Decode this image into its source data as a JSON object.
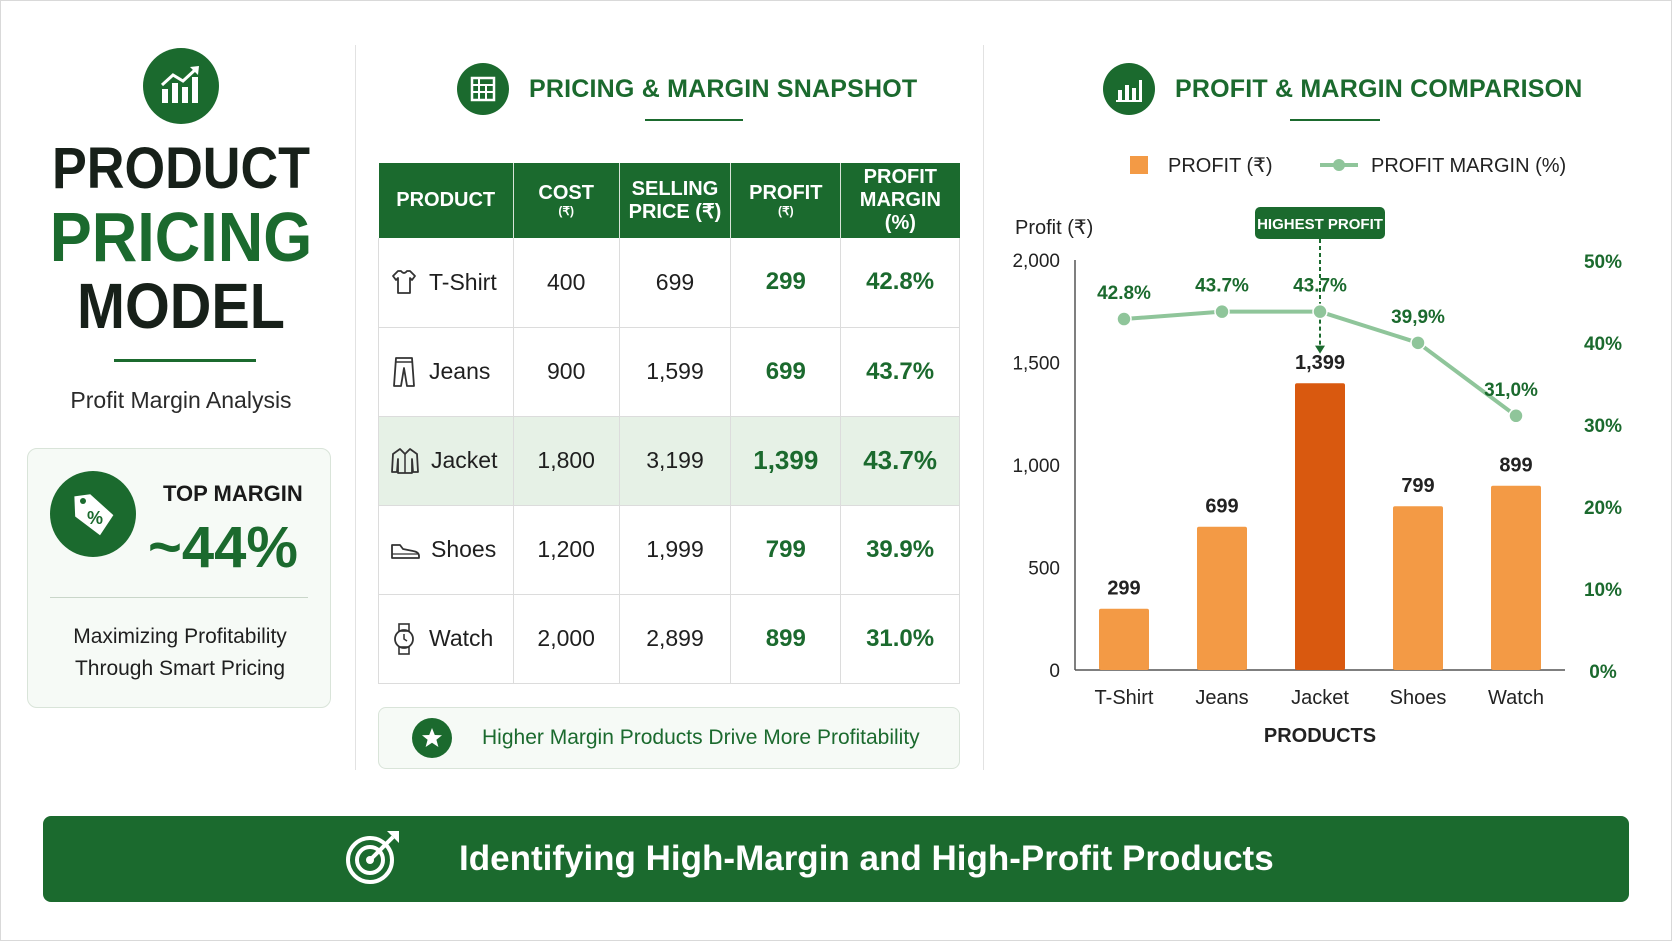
{
  "header": {
    "title_line1": "PRODUCT",
    "title_line2": "PRICING",
    "title_line3": "MODEL",
    "subtitle": "Profit Margin Analysis",
    "logo_icon": "growth-chart-icon"
  },
  "top_card": {
    "label": "TOP MARGIN",
    "value": "~44%",
    "line1": "Maximizing Profitability",
    "line2": "Through Smart Pricing",
    "icon": "percent-tag-icon"
  },
  "snapshot": {
    "title": "PRICING & MARGIN SNAPSHOT",
    "columns": [
      {
        "line1": "PRODUCT",
        "line2": ""
      },
      {
        "line1": "COST",
        "line2": "(₹)"
      },
      {
        "line1": "SELLING",
        "line2": "PRICE (₹)"
      },
      {
        "line1": "PROFIT",
        "line2": "(₹)"
      },
      {
        "line1": "PROFIT",
        "line2": "MARGIN (%)"
      }
    ],
    "rows": [
      {
        "product": "T-Shirt",
        "cost": "400",
        "price": "699",
        "profit": "299",
        "margin": "42.8%",
        "icon": "tshirt-icon"
      },
      {
        "product": "Jeans",
        "cost": "900",
        "price": "1,599",
        "profit": "699",
        "margin": "43.7%",
        "icon": "jeans-icon"
      },
      {
        "product": "Jacket",
        "cost": "1,800",
        "price": "3,199",
        "profit": "1,399",
        "margin": "43.7%",
        "icon": "jacket-icon"
      },
      {
        "product": "Shoes",
        "cost": "1,200",
        "price": "1,999",
        "profit": "799",
        "margin": "39.9%",
        "icon": "shoe-icon"
      },
      {
        "product": "Watch",
        "cost": "2,000",
        "price": "2,899",
        "profit": "899",
        "margin": "31.0%",
        "icon": "watch-icon"
      }
    ],
    "note": "Higher Margin Products Drive More Profitability"
  },
  "comparison": {
    "title": "PROFIT & MARGIN COMPARISON"
  },
  "banner": {
    "text": "Identifying High-Margin and High-Profit Products",
    "icon": "target-icon"
  },
  "colors": {
    "brand_green": "#1b6a2e",
    "bar_orange": "#f39a45",
    "bar_highlight": "#d9590f",
    "margin_line": "#8fc59a"
  },
  "chart_data": {
    "type": "bar",
    "categories": [
      "T-Shirt",
      "Jeans",
      "Jacket",
      "Shoes",
      "Watch"
    ],
    "series": [
      {
        "name": "PROFIT (₹)",
        "type": "bar",
        "axis": "left",
        "values": [
          299,
          699,
          1399,
          799,
          899
        ],
        "labels": [
          "299",
          "699",
          "1,399",
          "799",
          "899"
        ]
      },
      {
        "name": "PROFIT MARGIN (%)",
        "type": "line",
        "axis": "right",
        "values": [
          42.8,
          43.7,
          43.7,
          39.9,
          31.0
        ],
        "labels": [
          "42.8%",
          "43.7%",
          "43.7%",
          "39,9%",
          "31,0%"
        ]
      }
    ],
    "xlabel": "PRODUCTS",
    "ylabel": "Profit (₹)",
    "ylim": [
      0,
      2000
    ],
    "yticks": [
      "0",
      "500",
      "1,000",
      "1,500",
      "2,000"
    ],
    "ytick_values": [
      0,
      500,
      1000,
      1500,
      2000
    ],
    "y2lim": [
      0,
      50
    ],
    "y2ticks": [
      "0%",
      "10%",
      "20%",
      "30%",
      "40%",
      "50%"
    ],
    "y2tick_values": [
      0,
      10,
      20,
      30,
      40,
      50
    ],
    "annotation": {
      "text": "HIGHEST PROFIT",
      "category": "Jacket"
    },
    "highlight_category": "Jacket",
    "legend_position": "top",
    "grid": false
  }
}
